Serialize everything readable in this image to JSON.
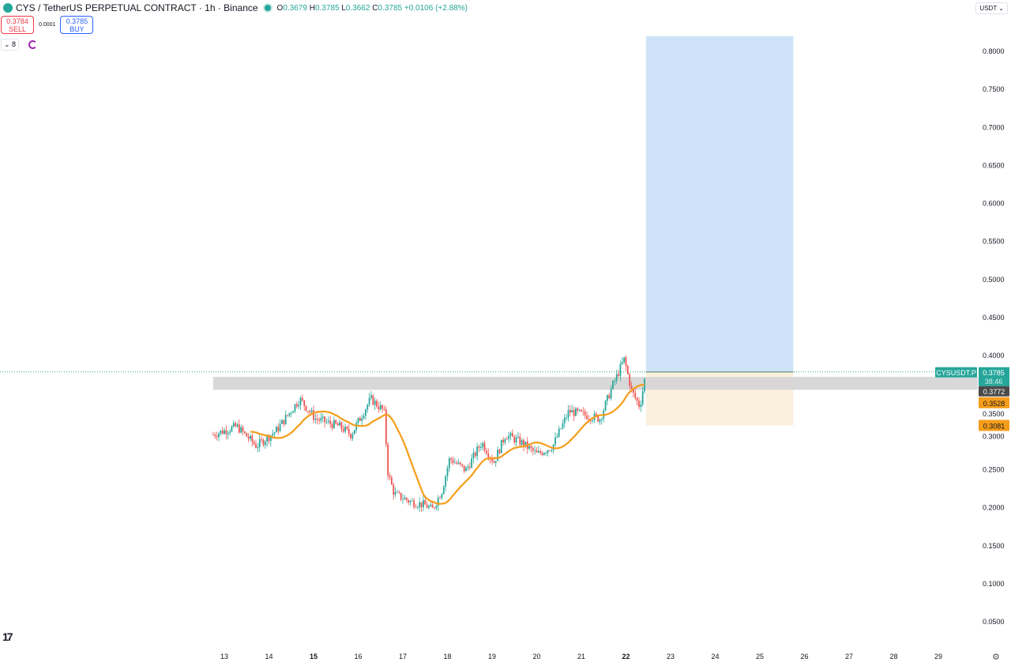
{
  "header": {
    "symbol_title": "CYS / TetherUS PERPETUAL CONTRACT · 1h · Binance",
    "ohlc": {
      "o_label": "O",
      "o": "0.3679",
      "h_label": "H",
      "h": "0.3785",
      "l_label": "L",
      "l": "0.3662",
      "c_label": "C",
      "c": "0.3785",
      "change": "+0.0106 (+2.88%)"
    }
  },
  "trade": {
    "sell_price": "0.3784",
    "sell_label": "SELL",
    "spread": "0.0001",
    "buy_price": "0.3785",
    "buy_label": "BUY"
  },
  "indicators": {
    "collapsed_count": "8"
  },
  "currency": "USDT",
  "labels": {
    "symbol_tag": "CYSUSDT.P",
    "last_price": "0.3785",
    "countdown": "38:46",
    "ma_value": "0.3772",
    "entry_or_zone": "0.3528",
    "stop": "0.3081"
  },
  "colors": {
    "up": "#26a69a",
    "down": "#ef5350",
    "ma": "#f59d1a",
    "target_fill": "#cfe3f8",
    "stop_fill": "#fbf0dd",
    "zone": "#d4d4d4"
  },
  "chart_data": {
    "type": "candlestick",
    "interval": "1h",
    "ylim": [
      0.02,
      0.82
    ],
    "y_ticks": [
      "0.8000",
      "0.7500",
      "0.7000",
      "0.6500",
      "0.6000",
      "0.5500",
      "0.5000",
      "0.4500",
      "0.4000",
      "0.3500",
      "0.3000",
      "0.2500",
      "0.2000",
      "0.1500",
      "0.1000",
      "0.0500"
    ],
    "x_ticks": [
      "13",
      "14",
      "15",
      "16",
      "17",
      "18",
      "19",
      "20",
      "21",
      "22",
      "23",
      "24",
      "25",
      "26",
      "27",
      "28",
      "29"
    ],
    "x_ticks_bold": [
      "15",
      "22"
    ],
    "price_path_day_price": [
      [
        12.75,
        0.296
      ],
      [
        13.28,
        0.307
      ],
      [
        13.72,
        0.281
      ],
      [
        14.16,
        0.301
      ],
      [
        14.69,
        0.343
      ],
      [
        15.04,
        0.317
      ],
      [
        15.58,
        0.307
      ],
      [
        15.84,
        0.296
      ],
      [
        16.28,
        0.343
      ],
      [
        16.58,
        0.327
      ],
      [
        16.67,
        0.244
      ],
      [
        16.81,
        0.218
      ],
      [
        17.17,
        0.208
      ],
      [
        17.52,
        0.203
      ],
      [
        17.66,
        0.197
      ],
      [
        17.88,
        0.223
      ],
      [
        18.05,
        0.265
      ],
      [
        18.41,
        0.249
      ],
      [
        18.77,
        0.286
      ],
      [
        19.04,
        0.26
      ],
      [
        19.3,
        0.296
      ],
      [
        19.65,
        0.286
      ],
      [
        20.01,
        0.27
      ],
      [
        20.36,
        0.281
      ],
      [
        20.72,
        0.327
      ],
      [
        21.07,
        0.322
      ],
      [
        21.42,
        0.317
      ],
      [
        21.69,
        0.359
      ],
      [
        21.96,
        0.395
      ],
      [
        22.13,
        0.353
      ],
      [
        22.31,
        0.333
      ],
      [
        22.45,
        0.3785
      ]
    ],
    "moving_average_period": 20,
    "long_position": {
      "entry": 0.3785,
      "target_top": 0.82,
      "stop": 0.3081,
      "start_day": 22.45,
      "end_day": 25.75
    },
    "zone": {
      "low": 0.355,
      "high": 0.372,
      "start_day": 12.75
    },
    "last_price": 0.3785
  }
}
